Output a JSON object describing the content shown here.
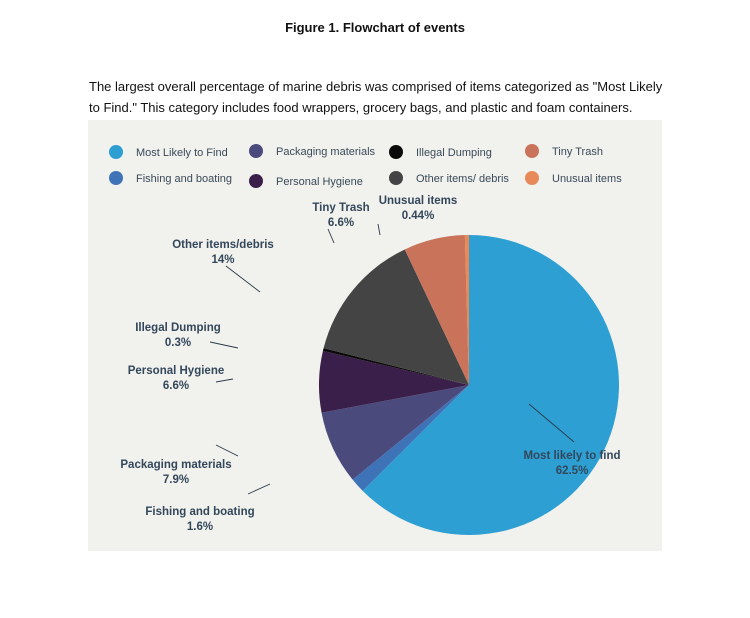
{
  "figure_title": "Figure 1. Flowchart of events",
  "caption": "The largest overall percentage of marine debris was comprised of items categorized as \"Most Likely to Find.\" This category includes food wrappers, grocery bags, and plastic and foam containers.",
  "legend": [
    {
      "label": "Most Likely to Find",
      "color": "#2d9fd3"
    },
    {
      "label": "Packaging materials",
      "color": "#4a4a7c"
    },
    {
      "label": "Illegal Dumping",
      "color": "#0a0a0a"
    },
    {
      "label": "Tiny Trash",
      "color": "#c8735a"
    },
    {
      "label": "Fishing and boating",
      "color": "#3f73b8"
    },
    {
      "label": "Personal Hygiene",
      "color": "#3a1f4a"
    },
    {
      "label": "Other items/ debris",
      "color": "#444444"
    },
    {
      "label": "Unusual items",
      "color": "#e8895a"
    }
  ],
  "chart_data": {
    "type": "pie",
    "title": "",
    "start_angle_deg": 0,
    "direction": "clockwise",
    "slices": [
      {
        "name": "Most likely to find",
        "label": "Most likely to find",
        "value_label": "62.5%",
        "value": 62.5,
        "color": "#2d9fd3"
      },
      {
        "name": "Fishing and boating",
        "label": "Fishing and boating",
        "value_label": "1.6%",
        "value": 1.6,
        "color": "#3f73b8"
      },
      {
        "name": "Packaging materials",
        "label": "Packaging materials",
        "value_label": "7.9%",
        "value": 7.9,
        "color": "#4a4a7c"
      },
      {
        "name": "Personal Hygiene",
        "label": "Personal Hygiene",
        "value_label": "6.6%",
        "value": 6.6,
        "color": "#3a1f4a"
      },
      {
        "name": "Illegal Dumping",
        "label": "Illegal Dumping",
        "value_label": "0.3%",
        "value": 0.3,
        "color": "#0a0a0a"
      },
      {
        "name": "Other items/debris",
        "label": "Other items/debris",
        "value_label": "14%",
        "value": 14,
        "color": "#444444"
      },
      {
        "name": "Tiny Trash",
        "label": "Tiny Trash",
        "value_label": "6.6%",
        "value": 6.6,
        "color": "#c8735a"
      },
      {
        "name": "Unusual items",
        "label": "Unusual items",
        "value_label": "0.44%",
        "value": 0.44,
        "color": "#e8895a"
      }
    ]
  }
}
